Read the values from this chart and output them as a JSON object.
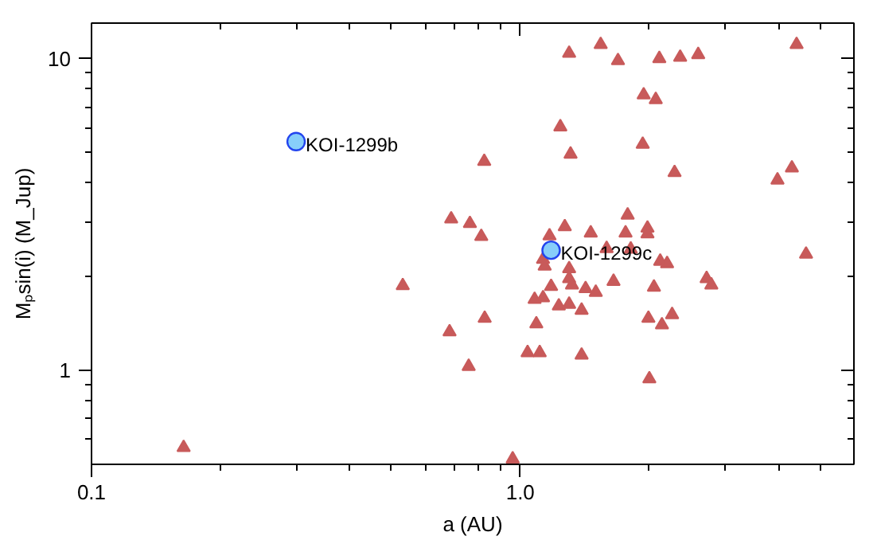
{
  "chart_data": {
    "type": "scatter",
    "xlabel": "a (AU)",
    "ylabel": "Mₚsin(i) (M_Jup)",
    "log": "xy",
    "grid": false,
    "xlim": [
      0.1,
      6
    ],
    "ylim": [
      0.5,
      13
    ],
    "xticks": [
      0.1,
      {
        "value": 0.2,
        "label": null
      },
      {
        "value": 0.3,
        "label": null
      },
      {
        "value": 0.4,
        "label": null
      },
      {
        "value": 0.5,
        "label": null
      },
      {
        "value": 0.6,
        "label": null
      },
      {
        "value": 0.7,
        "label": null
      },
      {
        "value": 0.8,
        "label": null
      },
      {
        "value": 0.9,
        "label": null
      },
      {
        "value": 1,
        "label": "1.0"
      },
      {
        "value": 2,
        "label": null
      },
      {
        "value": 3,
        "label": null
      },
      {
        "value": 4,
        "label": null
      },
      {
        "value": 5,
        "label": null
      }
    ],
    "yticks": [
      {
        "value": 0.6,
        "label": null
      },
      {
        "value": 0.7,
        "label": null
      },
      {
        "value": 0.8,
        "label": null
      },
      {
        "value": 0.9,
        "label": null
      },
      1,
      {
        "value": 2,
        "label": null
      },
      {
        "value": 3,
        "label": null
      },
      {
        "value": 4,
        "label": null
      },
      {
        "value": 5,
        "label": null
      },
      {
        "value": 6,
        "label": null
      },
      {
        "value": 7,
        "label": null
      },
      {
        "value": 8,
        "label": null
      },
      {
        "value": 9,
        "label": null
      },
      10
    ],
    "series": [
      {
        "color": "#c85a5a",
        "marker": "triangle",
        "x": [
          1.3,
          1.54,
          1.69,
          2.11,
          2.36,
          2.6,
          4.41,
          1.94,
          2.07,
          1.24,
          1.93,
          0.824,
          1.31,
          2.29,
          3.98,
          4.3,
          0.69,
          0.763,
          0.811,
          1.78,
          1.17,
          1.27,
          1.46,
          1.76,
          1.98,
          1.98,
          1.59,
          1.81,
          4.64,
          1.13,
          1.14,
          2.12,
          2.2,
          1.3,
          1.3,
          1.32,
          1.65,
          2.72,
          2.79,
          0.532,
          1.18,
          1.42,
          1.5,
          2.05,
          1.08,
          1.13,
          1.23,
          1.3,
          1.39,
          0.826,
          0.684,
          1.09,
          1.99,
          2.14,
          2.26,
          1.04,
          1.11,
          1.39,
          0.758,
          2.0,
          0.96,
          0.164
        ],
        "values": [
          10.4,
          11.1,
          9.85,
          10.0,
          10.1,
          10.3,
          11.1,
          7.65,
          7.39,
          6.04,
          5.31,
          4.68,
          4.94,
          4.31,
          4.08,
          4.46,
          3.06,
          2.96,
          2.69,
          3.15,
          2.7,
          2.89,
          2.76,
          2.76,
          2.86,
          2.74,
          2.46,
          2.45,
          2.36,
          2.27,
          2.16,
          2.24,
          2.2,
          2.12,
          1.97,
          1.88,
          1.93,
          1.97,
          1.88,
          1.87,
          1.86,
          1.83,
          1.78,
          1.85,
          1.69,
          1.71,
          1.61,
          1.63,
          1.56,
          1.47,
          1.33,
          1.41,
          1.47,
          1.4,
          1.51,
          1.14,
          1.14,
          1.12,
          1.03,
          0.94,
          0.52,
          0.566
        ]
      },
      {
        "color": "#87cefa",
        "marker": "circle",
        "x": [
          0.3,
          1.18
        ],
        "values": [
          5.42,
          2.43
        ]
      }
    ],
    "annotations": [
      {
        "text": "KOI-1299b",
        "x": 0.3,
        "y": 5.42
      },
      {
        "text": "KOI-1299c",
        "x": 1.18,
        "y": 2.43
      }
    ]
  }
}
